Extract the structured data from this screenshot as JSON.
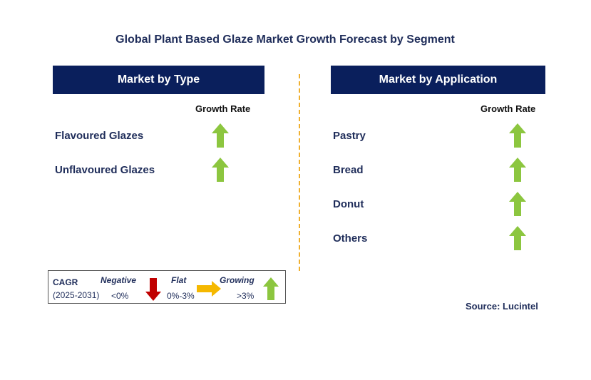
{
  "title": "Global Plant Based Glaze Market Growth Forecast by Segment",
  "colors": {
    "header_bg": "#0a1f5c",
    "arrow_up": "#8cc63f",
    "arrow_down": "#c00000",
    "arrow_flat": "#f5b800",
    "divider": "#f0b030"
  },
  "type_panel": {
    "header": "Market by Type",
    "growth_label": "Growth Rate",
    "rows": [
      {
        "label": "Flavoured Glazes",
        "trend": "growing"
      },
      {
        "label": "Unflavoured Glazes",
        "trend": "growing"
      }
    ]
  },
  "application_panel": {
    "header": "Market by Application",
    "growth_label": "Growth Rate",
    "rows": [
      {
        "label": "Pastry",
        "trend": "growing"
      },
      {
        "label": "Bread",
        "trend": "growing"
      },
      {
        "label": "Donut",
        "trend": "growing"
      },
      {
        "label": "Others",
        "trend": "growing"
      }
    ]
  },
  "legend": {
    "cagr": "CAGR",
    "period": "(2025-2031)",
    "negative_label": "Negative",
    "negative_value": "<0%",
    "flat_label": "Flat",
    "flat_value": "0%-3%",
    "growing_label": "Growing",
    "growing_value": ">3%",
    "icons": {
      "negative": "down-arrow-icon",
      "flat": "right-arrow-icon",
      "growing": "up-arrow-icon"
    }
  },
  "source": "Source: Lucintel"
}
